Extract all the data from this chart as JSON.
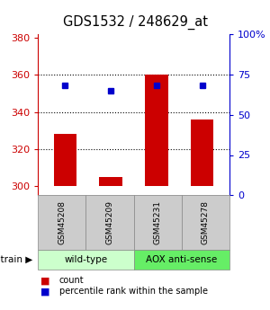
{
  "title": "GDS1532 / 248629_at",
  "samples": [
    "GSM45208",
    "GSM45209",
    "GSM45231",
    "GSM45278"
  ],
  "count_values": [
    328,
    305,
    360,
    336
  ],
  "percentile_values": [
    68,
    65,
    68,
    68
  ],
  "ylim_left": [
    295,
    382
  ],
  "ylim_right": [
    0,
    100
  ],
  "yticks_left": [
    300,
    320,
    340,
    360,
    380
  ],
  "yticks_right": [
    0,
    25,
    50,
    75,
    100
  ],
  "bar_color": "#cc0000",
  "dot_color": "#0000cc",
  "bar_bottom": 300,
  "groups": [
    {
      "label": "wild-type",
      "samples": [
        0,
        1
      ],
      "color": "#ccffcc"
    },
    {
      "label": "AOX anti-sense",
      "samples": [
        2,
        3
      ],
      "color": "#66ee66"
    }
  ],
  "strain_label": "strain",
  "legend_count": "count",
  "legend_percentile": "percentile rank within the sample",
  "sample_box_color": "#cccccc",
  "background_color": "#ffffff",
  "grid_yticks": [
    320,
    340,
    360
  ]
}
